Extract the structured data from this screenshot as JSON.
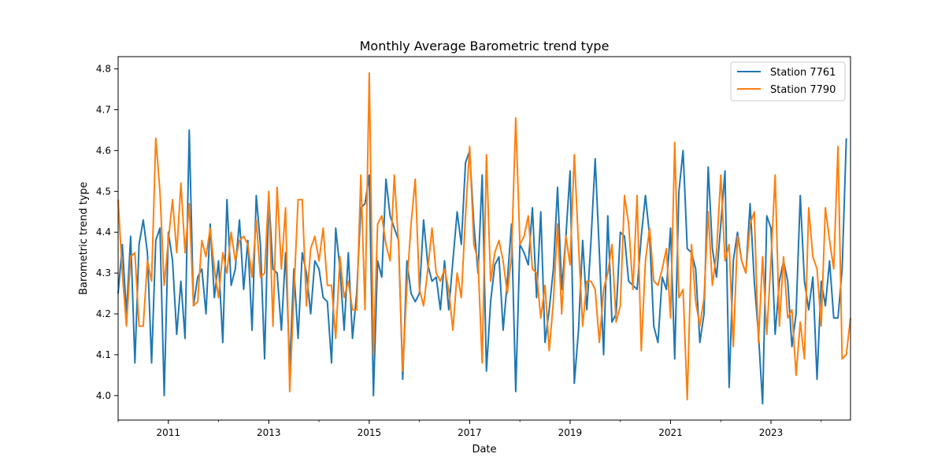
{
  "chart_data": {
    "type": "line",
    "title": "Monthly Average Barometric trend type",
    "xlabel": "Date",
    "ylabel": "Barometric trend type",
    "x_start": "2010-01",
    "x_end": "2024-08",
    "x_ticks": [
      {
        "label": "2011",
        "date": "2011-01"
      },
      {
        "label": "2013",
        "date": "2013-01"
      },
      {
        "label": "2015",
        "date": "2015-01"
      },
      {
        "label": "2017",
        "date": "2017-01"
      },
      {
        "label": "2019",
        "date": "2019-01"
      },
      {
        "label": "2021",
        "date": "2021-01"
      },
      {
        "label": "2023",
        "date": "2023-01"
      }
    ],
    "ylim": [
      3.94,
      4.83
    ],
    "y_ticks": [
      "4.0",
      "4.1",
      "4.2",
      "4.3",
      "4.4",
      "4.5",
      "4.6",
      "4.7",
      "4.8"
    ],
    "grid": false,
    "legend_position": "top-right",
    "series": [
      {
        "name": "Station 7761",
        "color": "#1f77b4",
        "values": [
          4.25,
          4.37,
          4.2,
          4.39,
          4.08,
          4.37,
          4.43,
          4.35,
          4.08,
          4.38,
          4.41,
          4.0,
          4.4,
          4.33,
          4.15,
          4.28,
          4.14,
          4.65,
          4.22,
          4.29,
          4.31,
          4.2,
          4.42,
          4.24,
          4.33,
          4.13,
          4.48,
          4.27,
          4.31,
          4.43,
          4.26,
          4.38,
          4.16,
          4.49,
          4.37,
          4.09,
          4.49,
          4.31,
          4.3,
          4.16,
          4.35,
          4.07,
          4.31,
          4.14,
          4.35,
          4.3,
          4.2,
          4.33,
          4.31,
          4.24,
          4.23,
          4.08,
          4.41,
          4.31,
          4.16,
          4.35,
          4.14,
          4.25,
          4.46,
          4.47,
          4.54,
          4.0,
          4.33,
          4.29,
          4.53,
          4.44,
          4.41,
          4.38,
          4.04,
          4.33,
          4.25,
          4.23,
          4.25,
          4.43,
          4.32,
          4.28,
          4.29,
          4.21,
          4.33,
          4.21,
          4.33,
          4.45,
          4.37,
          4.57,
          4.6,
          4.42,
          4.3,
          4.54,
          4.06,
          4.23,
          4.32,
          4.34,
          4.16,
          4.28,
          4.42,
          4.01,
          4.37,
          4.35,
          4.32,
          4.46,
          4.24,
          4.45,
          4.13,
          4.21,
          4.31,
          4.51,
          4.26,
          4.39,
          4.55,
          4.03,
          4.16,
          4.38,
          4.21,
          4.38,
          4.58,
          4.35,
          4.1,
          4.44,
          4.18,
          4.2,
          4.4,
          4.39,
          4.28,
          4.27,
          4.26,
          4.39,
          4.49,
          4.39,
          4.17,
          4.13,
          4.29,
          4.26,
          4.41,
          4.09,
          4.5,
          4.6,
          4.36,
          4.35,
          4.31,
          4.13,
          4.2,
          4.56,
          4.36,
          4.29,
          4.42,
          4.55,
          4.02,
          4.33,
          4.4,
          4.33,
          4.3,
          4.47,
          4.28,
          4.15,
          3.98,
          4.44,
          4.41,
          4.15,
          4.28,
          4.33,
          4.28,
          4.12,
          4.2,
          4.49,
          4.28,
          4.21,
          4.29,
          4.04,
          4.28,
          4.22,
          4.33,
          4.19,
          4.19,
          4.31,
          4.63
        ]
      },
      {
        "name": "Station 7790",
        "color": "#ff7f0e",
        "values": [
          4.48,
          4.3,
          4.17,
          4.34,
          4.35,
          4.17,
          4.17,
          4.33,
          4.28,
          4.63,
          4.5,
          4.27,
          4.38,
          4.48,
          4.35,
          4.52,
          4.35,
          4.47,
          4.22,
          4.23,
          4.38,
          4.34,
          4.41,
          4.31,
          4.24,
          4.35,
          4.3,
          4.4,
          4.33,
          4.38,
          4.39,
          4.37,
          4.29,
          4.43,
          4.29,
          4.3,
          4.5,
          4.17,
          4.51,
          4.31,
          4.46,
          4.01,
          4.25,
          4.48,
          4.48,
          4.22,
          4.36,
          4.39,
          4.33,
          4.41,
          4.27,
          4.27,
          4.14,
          4.34,
          4.24,
          4.28,
          4.21,
          4.21,
          4.54,
          4.21,
          4.79,
          4.1,
          4.42,
          4.44,
          4.37,
          4.33,
          4.54,
          4.37,
          4.06,
          4.27,
          4.42,
          4.53,
          4.26,
          4.22,
          4.31,
          4.41,
          4.3,
          4.28,
          4.31,
          4.26,
          4.16,
          4.3,
          4.24,
          4.44,
          4.61,
          4.37,
          4.33,
          4.08,
          4.59,
          4.28,
          4.35,
          4.38,
          4.33,
          4.25,
          4.34,
          4.68,
          4.37,
          4.39,
          4.44,
          4.31,
          4.3,
          4.19,
          4.27,
          4.11,
          4.23,
          4.42,
          4.2,
          4.39,
          4.32,
          4.59,
          4.37,
          4.17,
          4.28,
          4.28,
          4.26,
          4.13,
          4.26,
          4.3,
          4.37,
          4.18,
          4.22,
          4.49,
          4.42,
          4.26,
          4.49,
          4.11,
          4.33,
          4.41,
          4.28,
          4.27,
          4.31,
          4.36,
          4.19,
          4.62,
          4.24,
          4.26,
          3.99,
          4.37,
          4.23,
          4.17,
          4.24,
          4.45,
          4.27,
          4.35,
          4.54,
          4.33,
          4.37,
          4.12,
          4.39,
          4.33,
          4.3,
          4.42,
          4.45,
          4.13,
          4.34,
          4.15,
          4.33,
          4.54,
          4.17,
          4.34,
          4.19,
          4.21,
          4.05,
          4.18,
          4.09,
          4.46,
          4.34,
          4.31,
          4.17,
          4.46,
          4.38,
          4.31,
          4.61,
          4.09,
          4.1,
          4.19
        ]
      }
    ]
  }
}
